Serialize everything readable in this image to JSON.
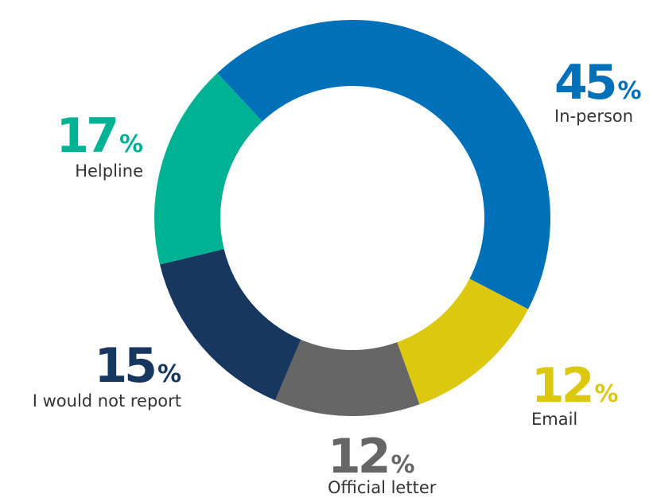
{
  "chart_data": {
    "type": "donut",
    "unit": "%",
    "categories": [
      "In-person",
      "Email",
      "Official letter",
      "I would not report",
      "Helpline"
    ],
    "values": [
      45,
      12,
      12,
      15,
      17
    ],
    "colors": [
      "#0070b8",
      "#dcc80e",
      "#666666",
      "#17375e",
      "#00b294"
    ]
  }
}
